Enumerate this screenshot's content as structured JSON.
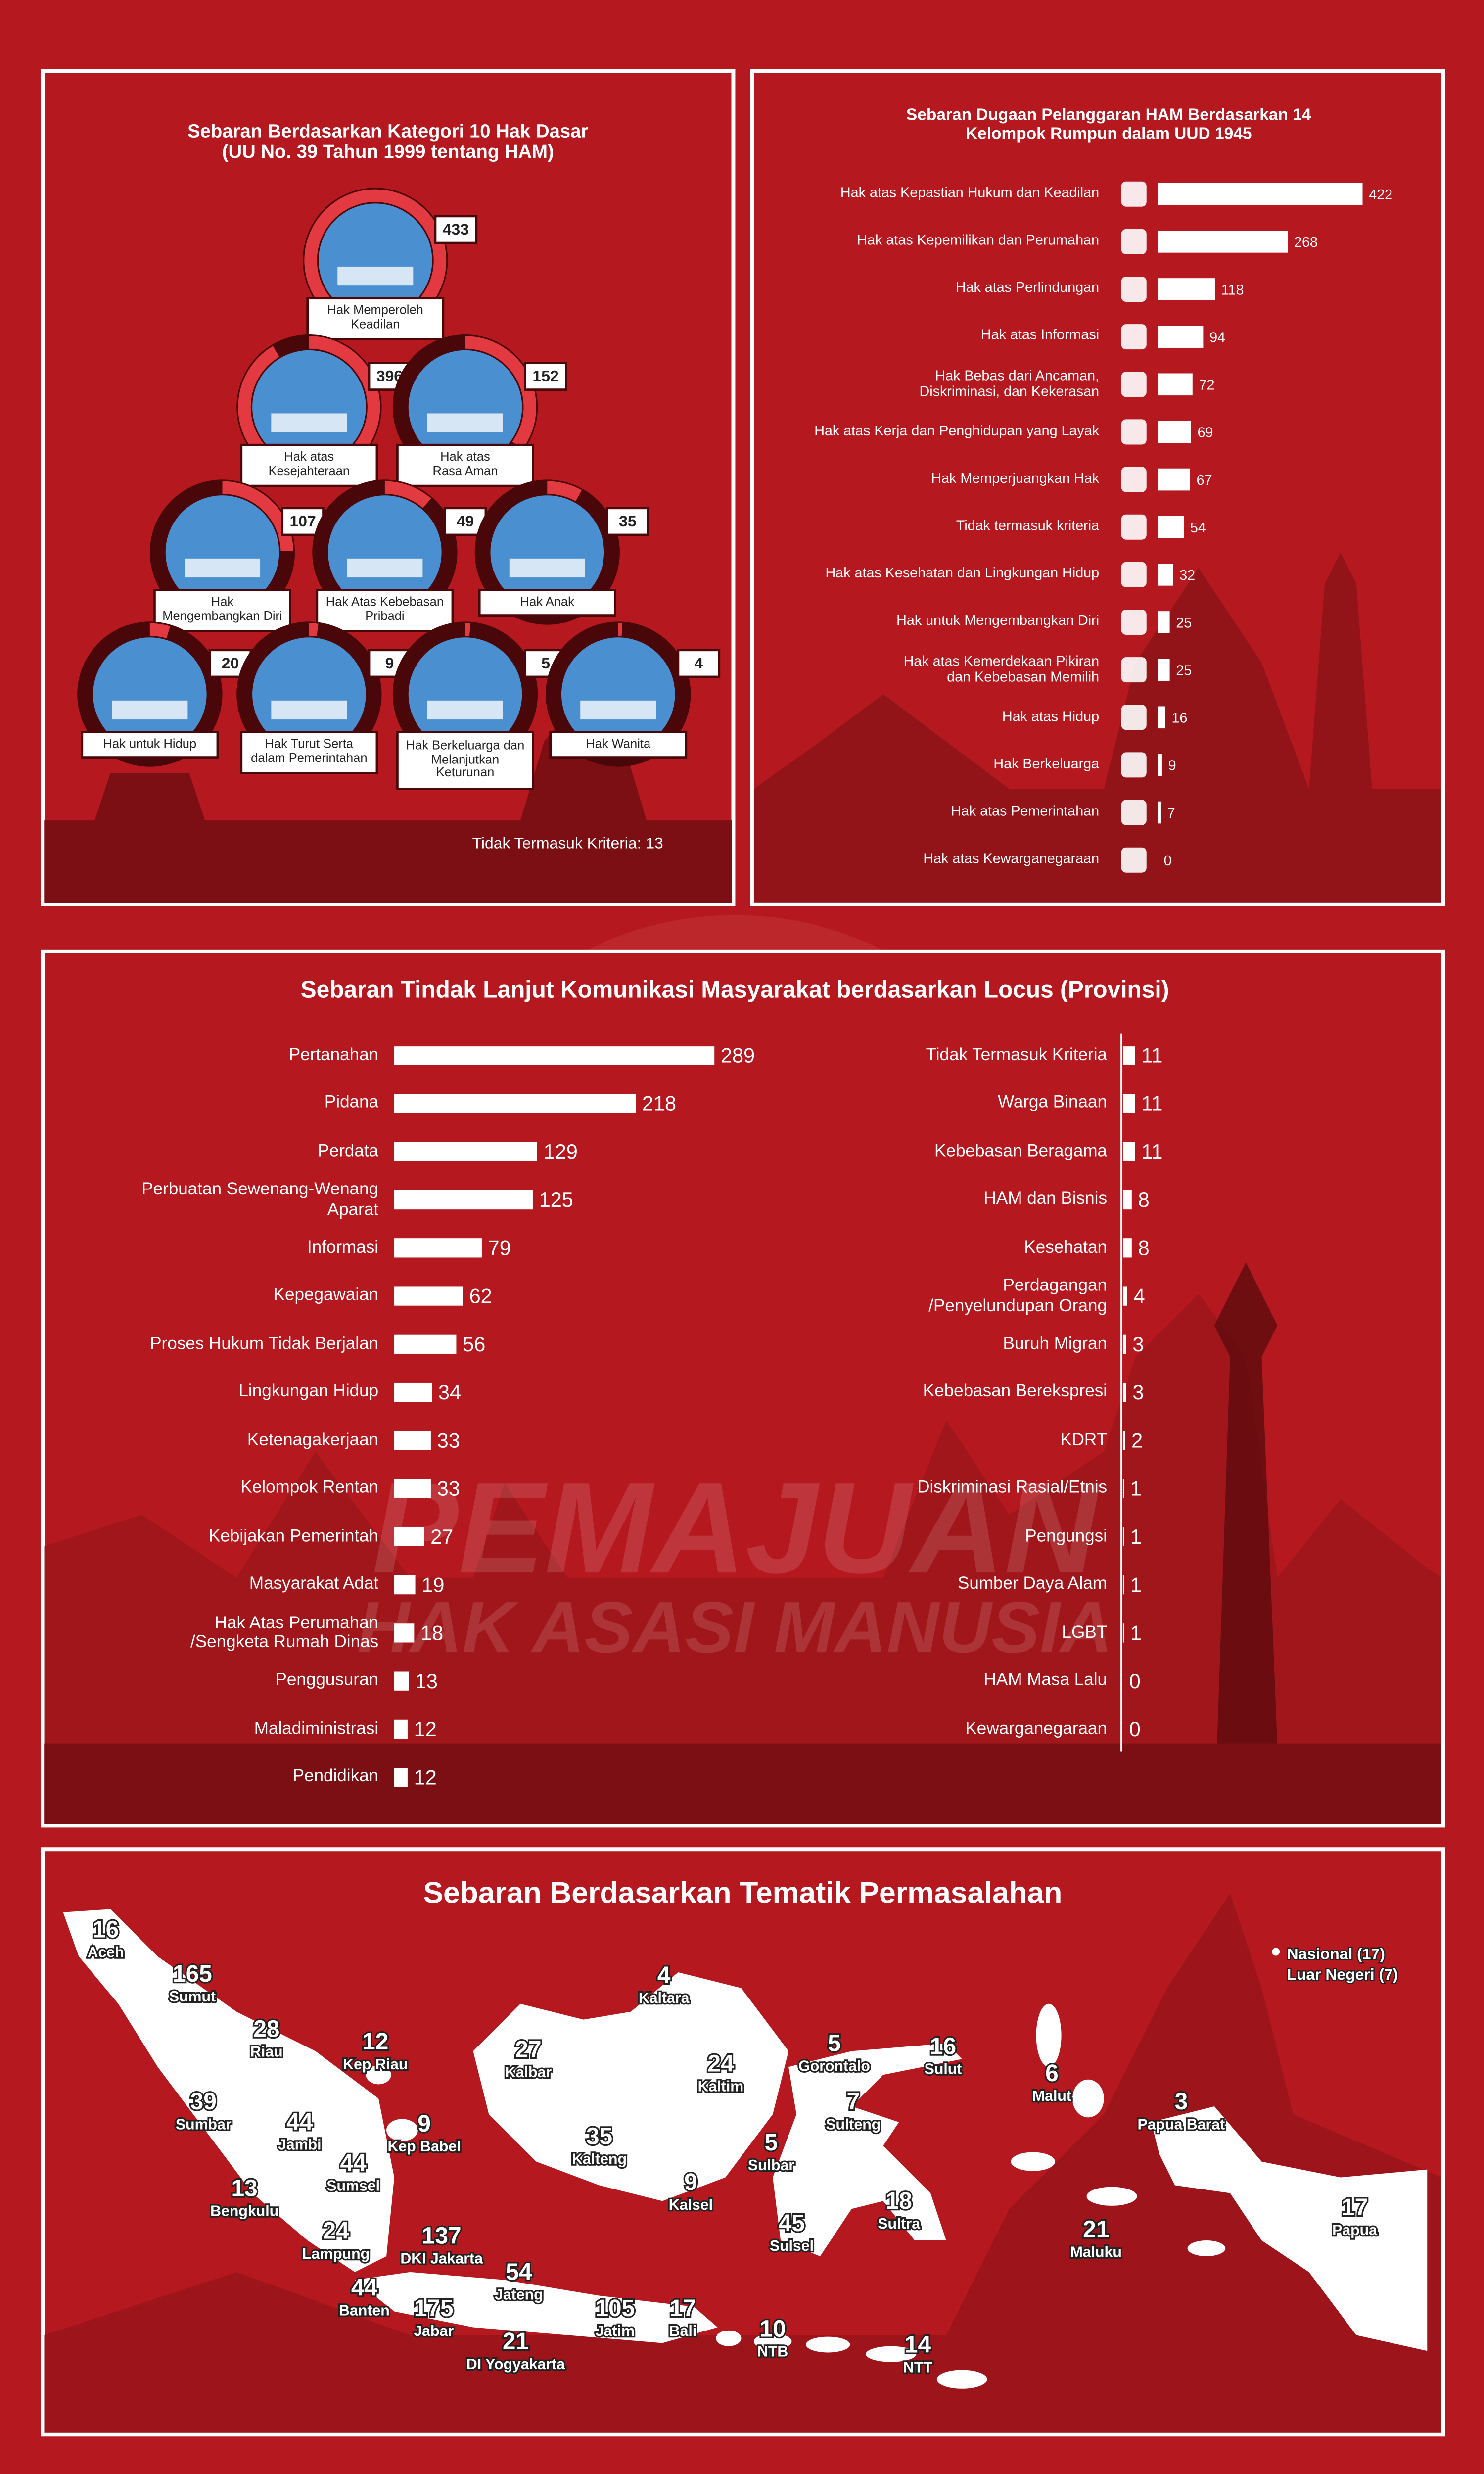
{
  "chart_data": [
    {
      "type": "ring",
      "title": "Sebaran Berdasarkan Kategori 10 Hak Dasar\n(UU No. 39 Tahun 1999 tentang HAM)",
      "categories": [
        "Hak Memperoleh\nKeadilan",
        "Hak atas\nKesejahteraan",
        "Hak atas\nRasa Aman",
        "Hak\nMengembangkan Diri",
        "Hak Atas Kebebasan\nPribadi",
        "Hak Anak",
        "Hak untuk Hidup",
        "Hak Turut Serta\ndalam Pemerintahan",
        "Hak Berkeluarga dan\nMelanjutkan\nKeturunan",
        "Hak Wanita"
      ],
      "values": [
        433,
        396,
        152,
        107,
        49,
        35,
        20,
        9,
        5,
        4
      ],
      "footnote": "Tidak Termasuk Kriteria: 13",
      "color": "#e23a40"
    },
    {
      "type": "bar",
      "title": "Sebaran Dugaan Pelanggaran HAM Berdasarkan 14\nKelompok Rumpun dalam UUD 1945",
      "categories": [
        "Hak atas Kepastian Hukum dan Keadilan",
        "Hak atas Kepemilikan dan Perumahan",
        "Hak atas Perlindungan",
        "Hak atas Informasi",
        "Hak Bebas dari Ancaman,\nDiskriminasi, dan Kekerasan",
        "Hak atas Kerja dan Penghidupan yang Layak",
        "Hak Memperjuangkan Hak",
        "Tidak termasuk kriteria",
        "Hak atas Kesehatan dan Lingkungan Hidup",
        "Hak untuk Mengembangkan Diri",
        "Hak atas Kemerdekaan Pikiran\ndan Kebebasan Memilih",
        "Hak atas Hidup",
        "Hak Berkeluarga",
        "Hak atas Pemerintahan",
        "Hak atas Kewarganegaraan"
      ],
      "values": [
        422,
        268,
        118,
        94,
        72,
        69,
        67,
        54,
        32,
        25,
        25,
        16,
        9,
        7,
        0
      ],
      "color": "#ffffff"
    },
    {
      "type": "bar",
      "title": "Sebaran Tindak Lanjut Komunikasi Masyarakat berdasarkan Locus (Provinsi)",
      "columns": [
        {
          "categories": [
            "Pertanahan",
            "Pidana",
            "Perdata",
            "Perbuatan Sewenang-Wenang\nAparat",
            "Informasi",
            "Kepegawaian",
            "Proses Hukum Tidak Berjalan",
            "Lingkungan Hidup",
            "Ketenagakerjaan",
            "Kelompok Rentan",
            "Kebijakan Pemerintah",
            "Masyarakat Adat",
            "Hak Atas Perumahan\n/Sengketa Rumah Dinas",
            "Penggusuran",
            "Maladiministrasi",
            "Pendidikan"
          ],
          "values": [
            289,
            218,
            129,
            125,
            79,
            62,
            56,
            34,
            33,
            33,
            27,
            19,
            18,
            13,
            12,
            12
          ]
        },
        {
          "categories": [
            "Tidak Termasuk Kriteria",
            "Warga Binaan",
            "Kebebasan Beragama",
            "HAM dan Bisnis",
            "Kesehatan",
            "Perdagangan\n/Penyelundupan Orang",
            "Buruh Migran",
            "Kebebasan Berekspresi",
            "KDRT",
            "Diskriminasi Rasial/Etnis",
            "Pengungsi",
            "Sumber Daya Alam",
            "LGBT",
            "HAM Masa Lalu",
            "Kewarganegaraan"
          ],
          "values": [
            11,
            11,
            11,
            8,
            8,
            4,
            3,
            3,
            2,
            1,
            1,
            1,
            1,
            0,
            0
          ]
        }
      ],
      "color": "#ffffff"
    },
    {
      "type": "map",
      "title": "Sebaran Berdasarkan Tematik Permasalahan",
      "categories": [
        "Aceh",
        "Sumut",
        "Riau",
        "Kep Riau",
        "Sumbar",
        "Jambi",
        "Kep Babel",
        "Sumsel",
        "Bengkulu",
        "Lampung",
        "DKI Jakarta",
        "Banten",
        "Jabar",
        "Jateng",
        "DI Yogyakarta",
        "Jatim",
        "Bali",
        "NTB",
        "NTT",
        "Kalbar",
        "Kaltara",
        "Kaltim",
        "Kalteng",
        "Kalsel",
        "Gorontalo",
        "Sulut",
        "Sulteng",
        "Sulbar",
        "Sulsel",
        "Sultra",
        "Malut",
        "Papua Barat",
        "Maluku",
        "Papua"
      ],
      "values": [
        16,
        165,
        28,
        12,
        39,
        44,
        9,
        44,
        13,
        24,
        137,
        44,
        175,
        54,
        21,
        105,
        17,
        10,
        14,
        27,
        4,
        24,
        35,
        9,
        5,
        16,
        7,
        5,
        45,
        18,
        6,
        3,
        21,
        17
      ],
      "notes": [
        {
          "label": "Nasional (17)",
          "value": 17
        },
        {
          "label": "Luar Negeri (7)",
          "value": 7
        }
      ]
    }
  ],
  "watermark": [
    "PEMAJUAN",
    "HAK ASASI MANUSIA"
  ]
}
